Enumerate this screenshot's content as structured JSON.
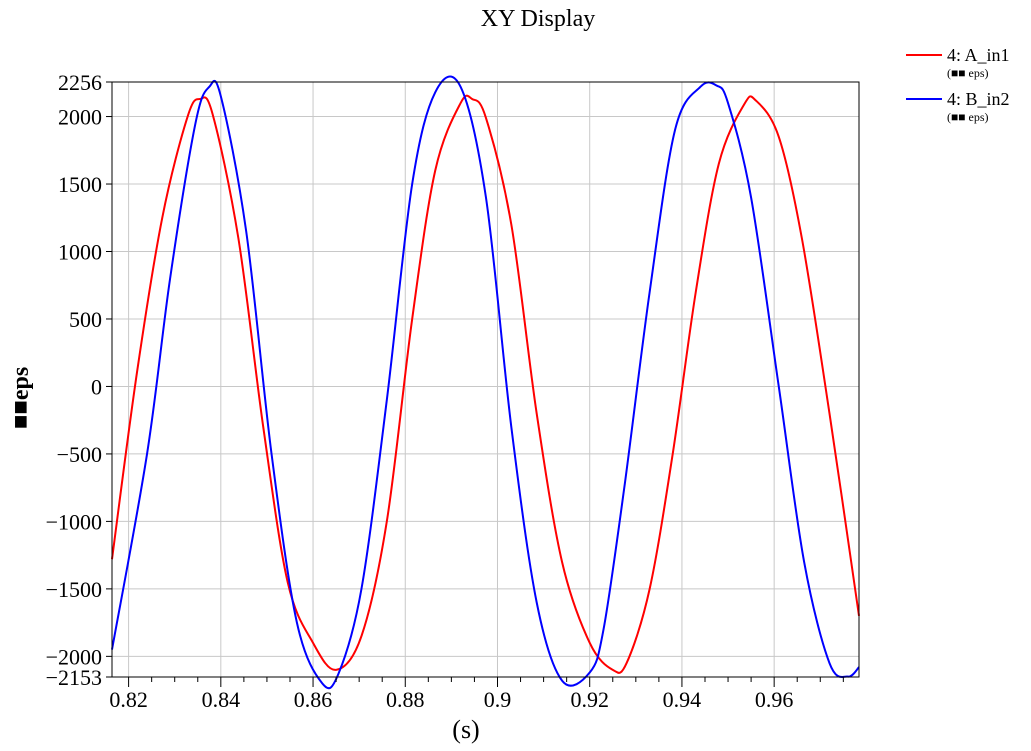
{
  "chart_data": {
    "type": "line",
    "title": "XY Display",
    "xlabel": "(s)",
    "ylabel": "■■eps",
    "xlim": [
      0.8164,
      0.9784
    ],
    "ylim": [
      -2153,
      2256
    ],
    "x_ticks": [
      0.82,
      0.84,
      0.86,
      0.88,
      0.9,
      0.92,
      0.94,
      0.96
    ],
    "x_tick_labels": [
      "0.82",
      "0.84",
      "0.86",
      "0.88",
      "0.9",
      "0.92",
      "0.94",
      "0.96"
    ],
    "y_ticks": [
      2256,
      2000,
      1500,
      1000,
      500,
      0,
      -500,
      -1000,
      -1500,
      -2000,
      -2153
    ],
    "y_tick_labels": [
      "2256",
      "2000",
      "1500",
      "1000",
      "500",
      "0",
      "−500",
      "−1000",
      "−1500",
      "−2000",
      "−2153"
    ],
    "grid": true,
    "legend_position": "outside-top-right",
    "series": [
      {
        "name": "4: A_in1",
        "unit": "(■■ eps)",
        "color": "#ff0000",
        "x": [
          0.8164,
          0.8218,
          0.8273,
          0.8328,
          0.8355,
          0.8382,
          0.8438,
          0.8492,
          0.8545,
          0.86,
          0.865,
          0.8705,
          0.876,
          0.8815,
          0.8865,
          0.892,
          0.8945,
          0.8975,
          0.903,
          0.9085,
          0.914,
          0.92,
          0.925,
          0.928,
          0.933,
          0.938,
          0.943,
          0.948,
          0.9535,
          0.956,
          0.961,
          0.966,
          0.972,
          0.9784
        ],
        "y": [
          -1280,
          100,
          1250,
          2000,
          2130,
          2020,
          1100,
          -300,
          -1450,
          -1900,
          -2100,
          -1850,
          -1000,
          500,
          1600,
          2100,
          2130,
          1990,
          1200,
          -200,
          -1300,
          -1900,
          -2100,
          -2050,
          -1500,
          -500,
          700,
          1650,
          2090,
          2120,
          1850,
          1100,
          -200,
          -1700
        ]
      },
      {
        "name": "4: B_in2",
        "unit": "(■■ eps)",
        "color": "#0000ff",
        "x": [
          0.8164,
          0.824,
          0.829,
          0.8345,
          0.8375,
          0.84,
          0.8455,
          0.851,
          0.8565,
          0.862,
          0.8655,
          0.8705,
          0.876,
          0.8815,
          0.8865,
          0.892,
          0.8975,
          0.903,
          0.9085,
          0.914,
          0.92,
          0.923,
          0.9275,
          0.933,
          0.9385,
          0.944,
          0.9475,
          0.95,
          0.955,
          0.961,
          0.9665,
          0.972,
          0.976,
          0.9784
        ],
        "y": [
          -1950,
          -500,
          800,
          1950,
          2220,
          2150,
          1150,
          -500,
          -1750,
          -2200,
          -2130,
          -1500,
          -100,
          1500,
          2180,
          2220,
          1400,
          -300,
          -1600,
          -2180,
          -2120,
          -1800,
          -750,
          700,
          1900,
          2220,
          2230,
          2100,
          1400,
          0,
          -1300,
          -2050,
          -2150,
          -2080
        ]
      }
    ]
  }
}
